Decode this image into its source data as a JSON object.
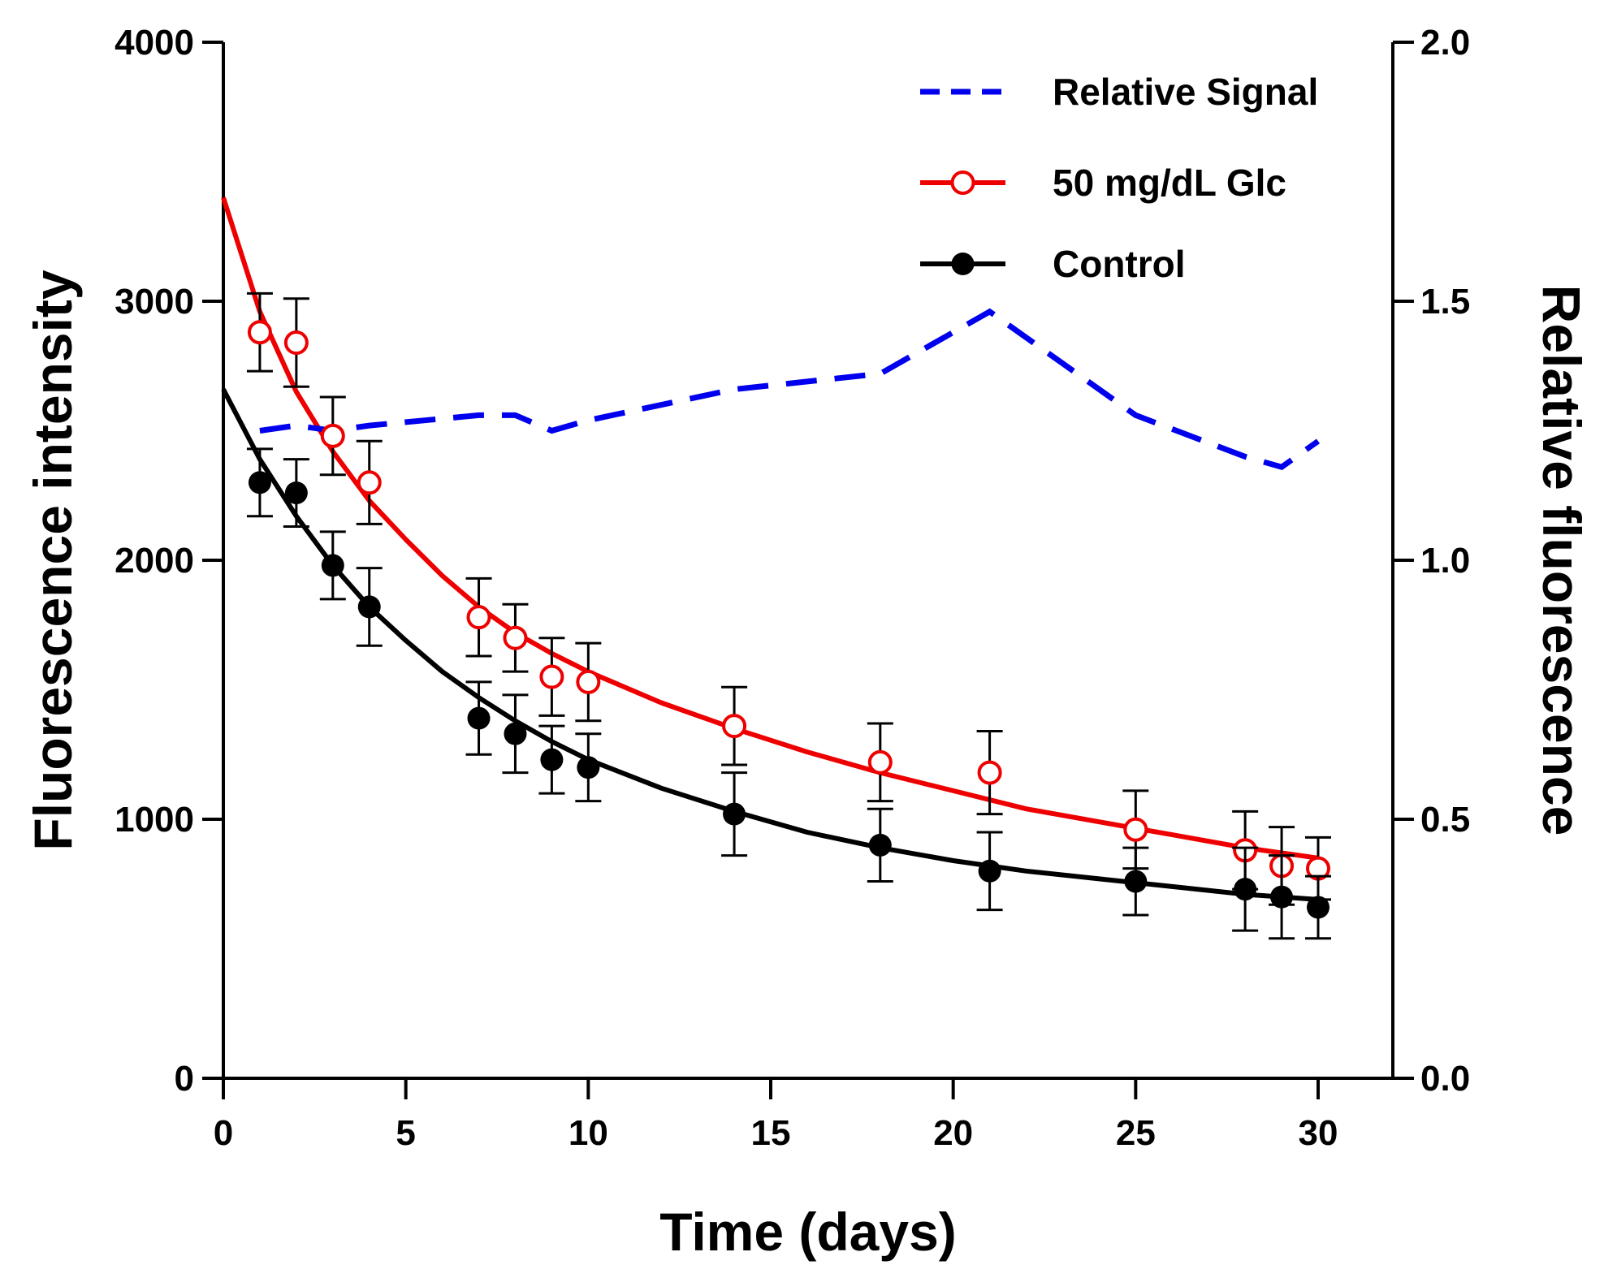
{
  "chart_data": {
    "type": "line",
    "title": "",
    "xlabel": "Time (days)",
    "ylabel": "Fluorescence intensity",
    "y2label": "Relative fluorescence",
    "xlim": [
      0,
      32
    ],
    "ylim": [
      0,
      4000
    ],
    "y2lim": [
      0,
      2.0
    ],
    "xticks": [
      "0",
      "5",
      "10",
      "15",
      "20",
      "25",
      "30"
    ],
    "yticks": [
      "0",
      "1000",
      "2000",
      "3000",
      "4000"
    ],
    "y2ticks": [
      "0.0",
      "0.5",
      "1.0",
      "1.5",
      "2.0"
    ],
    "legend_position": "top-right",
    "grid": false,
    "series": [
      {
        "name": "Relative Signal",
        "axis": "right",
        "style": "dashed",
        "color": "#0000ee",
        "x": [
          1,
          2,
          3,
          4,
          7,
          8,
          9,
          10,
          14,
          18,
          21,
          25,
          28,
          29,
          30
        ],
        "y": [
          1.25,
          1.26,
          1.25,
          1.26,
          1.28,
          1.28,
          1.25,
          1.27,
          1.33,
          1.36,
          1.48,
          1.28,
          1.2,
          1.18,
          1.23
        ]
      },
      {
        "name": "50 mg/dL Glc",
        "axis": "left",
        "marker": "open-circle",
        "color": "#ee0000",
        "x": [
          1,
          2,
          3,
          4,
          7,
          8,
          9,
          10,
          14,
          18,
          21,
          25,
          28,
          29,
          30
        ],
        "y": [
          2880,
          2840,
          2480,
          2300,
          1780,
          1700,
          1550,
          1530,
          1360,
          1220,
          1180,
          960,
          880,
          820,
          810
        ],
        "error": [
          150,
          170,
          150,
          160,
          150,
          130,
          150,
          150,
          150,
          150,
          160,
          150,
          150,
          150,
          120
        ],
        "fit": {
          "x": [
            0,
            1,
            2,
            3,
            4,
            5,
            6,
            7,
            8,
            9,
            10,
            12,
            14,
            16,
            18,
            20,
            22,
            24,
            26,
            28,
            30
          ],
          "y": [
            3400,
            2960,
            2650,
            2420,
            2230,
            2080,
            1940,
            1820,
            1720,
            1640,
            1570,
            1450,
            1350,
            1260,
            1180,
            1110,
            1040,
            990,
            940,
            890,
            850
          ]
        }
      },
      {
        "name": "Control",
        "axis": "left",
        "marker": "filled-circle",
        "color": "#000000",
        "x": [
          1,
          2,
          3,
          4,
          7,
          8,
          9,
          10,
          14,
          18,
          21,
          25,
          28,
          29,
          30
        ],
        "y": [
          2300,
          2260,
          1980,
          1820,
          1390,
          1330,
          1230,
          1200,
          1020,
          900,
          800,
          760,
          730,
          700,
          660
        ],
        "error": [
          130,
          130,
          130,
          150,
          140,
          150,
          130,
          130,
          160,
          140,
          150,
          130,
          160,
          160,
          120
        ],
        "fit": {
          "x": [
            0,
            1,
            2,
            3,
            4,
            5,
            6,
            7,
            8,
            9,
            10,
            12,
            14,
            16,
            18,
            20,
            22,
            24,
            26,
            28,
            30
          ],
          "y": [
            2660,
            2390,
            2170,
            1980,
            1820,
            1690,
            1570,
            1470,
            1380,
            1300,
            1230,
            1120,
            1030,
            950,
            890,
            840,
            800,
            770,
            740,
            710,
            690
          ]
        }
      }
    ]
  }
}
